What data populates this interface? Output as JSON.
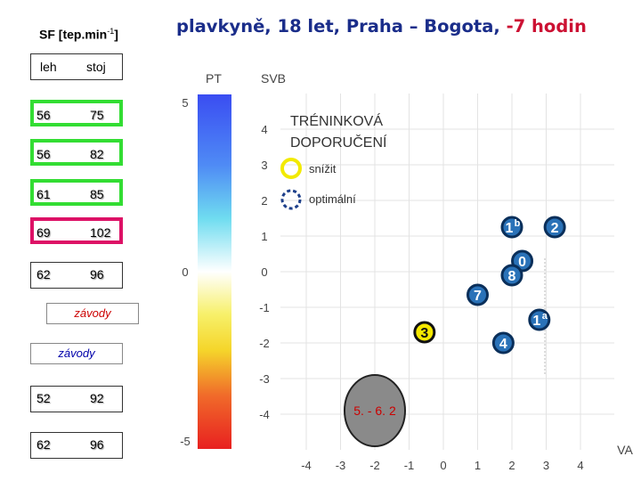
{
  "sf_table": {
    "title": "SF [tep.min",
    "title_sup": "-1",
    "title_end": "]",
    "col_lying": "leh",
    "col_standing": "stoj",
    "rows": [
      {
        "lying": "56",
        "standing": "75",
        "frame": "green"
      },
      {
        "lying": "56",
        "standing": "82",
        "frame": "green"
      },
      {
        "lying": "61",
        "standing": "85",
        "frame": "green"
      },
      {
        "lying": "69",
        "standing": "102",
        "frame": "magenta"
      },
      {
        "lying": "62",
        "standing": "96",
        "frame": "plain"
      }
    ],
    "race_label_1": "závody",
    "race_label_2": "závody",
    "rows_after": [
      {
        "lying": "52",
        "standing": "92"
      },
      {
        "lying": "62",
        "standing": "96"
      }
    ]
  },
  "title": {
    "part1": "plavkyně, 18 let, Praha – Bogota,",
    "part2": "-7 hodin"
  },
  "chart_data": {
    "type": "scatter",
    "title": "plavkyně, 18 let, Praha – Bogota, -7 hodin",
    "pt_label": "PT",
    "svb_label": "SVB",
    "va_label": "VA",
    "pt_ticks": [
      "5",
      "0",
      "-5"
    ],
    "pt_range": [
      -5,
      5
    ],
    "y_ticks": [
      "4",
      "3",
      "2",
      "1",
      "0",
      "-1",
      "-2",
      "-3",
      "-4"
    ],
    "ylim": [
      -4,
      4
    ],
    "x_ticks": [
      "-4",
      "-3",
      "-2",
      "-1",
      "0",
      "1",
      "2",
      "3",
      "4"
    ],
    "xlim": [
      -4,
      4
    ],
    "grid": true,
    "recommendation": {
      "title_line1": "TRÉNINKOVÁ",
      "title_line2": "DOPORUČENÍ",
      "reduce_label": "snížit",
      "optimal_label": "optimální"
    },
    "points": [
      {
        "label": "1",
        "sup": "b",
        "x": 2.0,
        "y": 1.25,
        "fill": "#2a72b8",
        "ring": "#0a2f5a"
      },
      {
        "label": "2",
        "sup": "",
        "x": 3.25,
        "y": 1.25,
        "fill": "#2a72b8",
        "ring": "#0a2f5a"
      },
      {
        "label": "0",
        "sup": "",
        "x": 2.3,
        "y": 0.3,
        "fill": "#2a72b8",
        "ring": "#0a2f5a"
      },
      {
        "label": "8",
        "sup": "",
        "x": 2.0,
        "y": -0.1,
        "fill": "#2a72b8",
        "ring": "#0a2f5a"
      },
      {
        "label": "7",
        "sup": "",
        "x": 1.0,
        "y": -0.65,
        "fill": "#2a72b8",
        "ring": "#0a2f5a"
      },
      {
        "label": "1",
        "sup": "a",
        "x": 2.8,
        "y": -1.35,
        "fill": "#2a72b8",
        "ring": "#0a2f5a"
      },
      {
        "label": "4",
        "sup": "",
        "x": 1.75,
        "y": -2.0,
        "fill": "#2a72b8",
        "ring": "#0a2f5a"
      },
      {
        "label": "3",
        "sup": "",
        "x": -0.55,
        "y": -1.7,
        "fill": "#f5e800",
        "ring": "#111111",
        "text_color": "#111111"
      },
      {
        "label": "5. - 6. 2",
        "sup": "",
        "x": -2.0,
        "y": -3.9,
        "fill": "#8a8a8a",
        "ring": "#222222",
        "text_color": "#cc0000",
        "big": true
      }
    ]
  }
}
